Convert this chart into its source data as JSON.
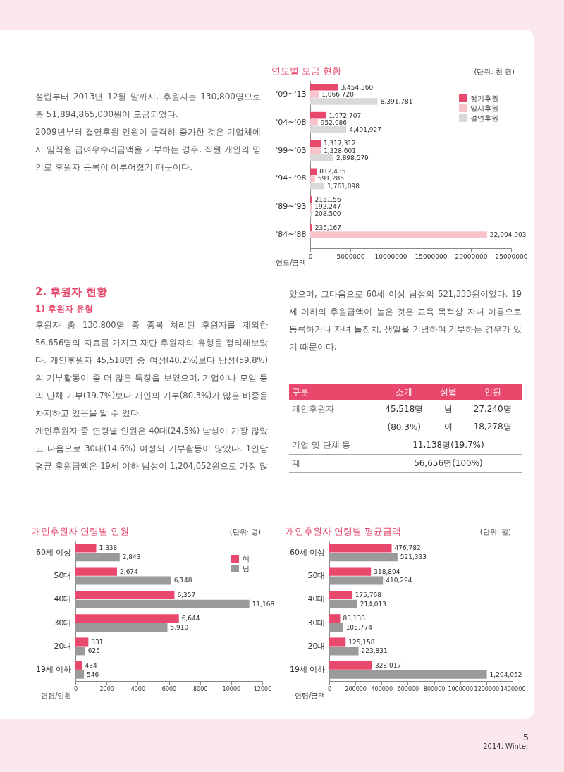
{
  "chart_data": [
    {
      "type": "other",
      "annotations": [
        "설립부터 2013년 12월 말까지, 후원자는 130,800명으로 총 51,894,865,000원이 모금되었다.",
        "2009년부터 결연후원 인원이 급격히 증가한 것은 기업체에서 임직원 급여우수리금액을 기부하는 경우, 직원 개인의 명의로 후원자 등록이 이루어졌기 때문이다."
      ]
    },
    {
      "type": "bar",
      "orientation": "horizontal",
      "title": "연도별 모금 현황",
      "subtitle": "(단위: 천 원)",
      "xlabel": "연도/금액",
      "categories": [
        "'09~'13",
        "'04~'08",
        "'99~'03",
        "'94~'98",
        "'89~'93",
        "'84~'88"
      ],
      "series": [
        {
          "name": "정기후원",
          "color": "#e8486c",
          "values": [
            3454360,
            1972707,
            1317312,
            812435,
            215156,
            235167
          ],
          "value_labels": [
            "3,454,360",
            "1,972,707",
            "1,317,312",
            "812,435",
            "215,156",
            "235,167"
          ]
        },
        {
          "name": "일시후원",
          "color": "#f8c3cb",
          "values": [
            1066720,
            952086,
            1328601,
            591286,
            192247,
            22004903
          ],
          "value_labels": [
            "1,066,720",
            "952,086",
            "1,328,601",
            "591,286",
            "192,247",
            "22,004,903"
          ]
        },
        {
          "name": "결연후원",
          "color": "#d9d9d9",
          "values": [
            8391781,
            4491927,
            2898579,
            1761098,
            208500,
            null
          ],
          "value_labels": [
            "8,391,781",
            "4,491,927",
            "2,898,579",
            "1,761,098",
            "208,500",
            null
          ]
        }
      ],
      "xlim": [
        0,
        25000000
      ],
      "xticks": [
        0,
        5000000,
        10000000,
        15000000,
        20000000,
        25000000
      ],
      "legend": "top right"
    },
    {
      "type": "other",
      "title": "2. 후원자 현황",
      "subtitle": "1) 후원자 유형",
      "annotations": [
        "후원자 총 130,800명 중 중복 처리된 후원자를 제외한 56,656명의 자료를 가지고 재단 후원자의 유형을 정리해보았다. 개인후원자 45,518명 중 여성(40.2%)보다 남성(59.8%)의 기부활동이 좀 더 많은 특징을 보였으며, 기업이나 모임 등의 단체 기부(19.7%)보다 개인의 기부(80.3%)가 많은 비중을 차지하고 있음을 알 수 있다.",
        "개인후원자 중 연령별 인원은 40대(24.5%) 남성이 가장 많았고 다음으로 30대(14.6%) 여성의 기부활동이 많았다. 1인당 평균 후원금액은 19세 이하 남성이 1,204,052원으로 가장 많았으며, 그다음으로 60세 이상 남성의 521,333원이었다. 19세 이하의 후원금액이 높은 것은 교육 목적상 자녀 이름으로 등록하거나 자녀 돌잔치, 생일을 기념하여 기부하는 경우가 있기 때문이다.",
        "구분",
        "소계",
        "성별",
        "인원",
        "개인후원자",
        "45,518명",
        "남",
        "27,240명",
        "(80.3%)",
        "여",
        "18,278명",
        "기업 및 단체 등",
        "11,138명(19.7%)",
        "계",
        "56,656명(100%)"
      ]
    },
    {
      "type": "bar",
      "orientation": "horizontal",
      "title": "개인후원자 연령별 인원",
      "subtitle": "(단위: 명)",
      "xlabel": "연령/인원",
      "categories": [
        "60세 이상",
        "50대",
        "40대",
        "30대",
        "20대",
        "19세 이하"
      ],
      "series": [
        {
          "name": "여",
          "color": "#e8486c",
          "values": [
            1338,
            2674,
            6357,
            6644,
            831,
            434
          ],
          "value_labels": [
            "1,338",
            "2,674",
            "6,357",
            "6,644",
            "831",
            "434"
          ]
        },
        {
          "name": "남",
          "color": "#9a9a9a",
          "values": [
            2843,
            6148,
            11168,
            5910,
            625,
            546
          ],
          "value_labels": [
            "2,843",
            "6,148",
            "11,168",
            "5,910",
            "625",
            "546"
          ]
        }
      ],
      "xlim": [
        0,
        12000
      ],
      "xticks": [
        0,
        2000,
        4000,
        6000,
        8000,
        10000,
        12000
      ],
      "legend": "top right"
    },
    {
      "type": "bar",
      "orientation": "horizontal",
      "title": "개인후원자 연령별 평균금액",
      "subtitle": "(단위: 원)",
      "xlabel": "연령/금액",
      "categories": [
        "60세 이상",
        "50대",
        "40대",
        "30대",
        "20대",
        "19세 이하"
      ],
      "series": [
        {
          "color": "#e8486c",
          "values": [
            476782,
            318804,
            175768,
            83138,
            125158,
            328017
          ],
          "value_labels": [
            "476,782",
            "318,804",
            "175,768",
            "83,138",
            "125,158",
            "328,017"
          ]
        },
        {
          "color": "#9a9a9a",
          "values": [
            521333,
            410294,
            214013,
            105774,
            223831,
            1204052
          ],
          "value_labels": [
            "521,333",
            "410,294",
            "214,013",
            "105,774",
            "223,831",
            "1,204,052"
          ]
        }
      ],
      "xlim": [
        0,
        1400000
      ],
      "xticks": [
        0,
        200000,
        400000,
        600000,
        800000,
        1000000,
        1200000,
        1400000
      ]
    },
    {
      "type": "other",
      "annotations": [
        "5",
        "2014. Winter"
      ]
    }
  ]
}
